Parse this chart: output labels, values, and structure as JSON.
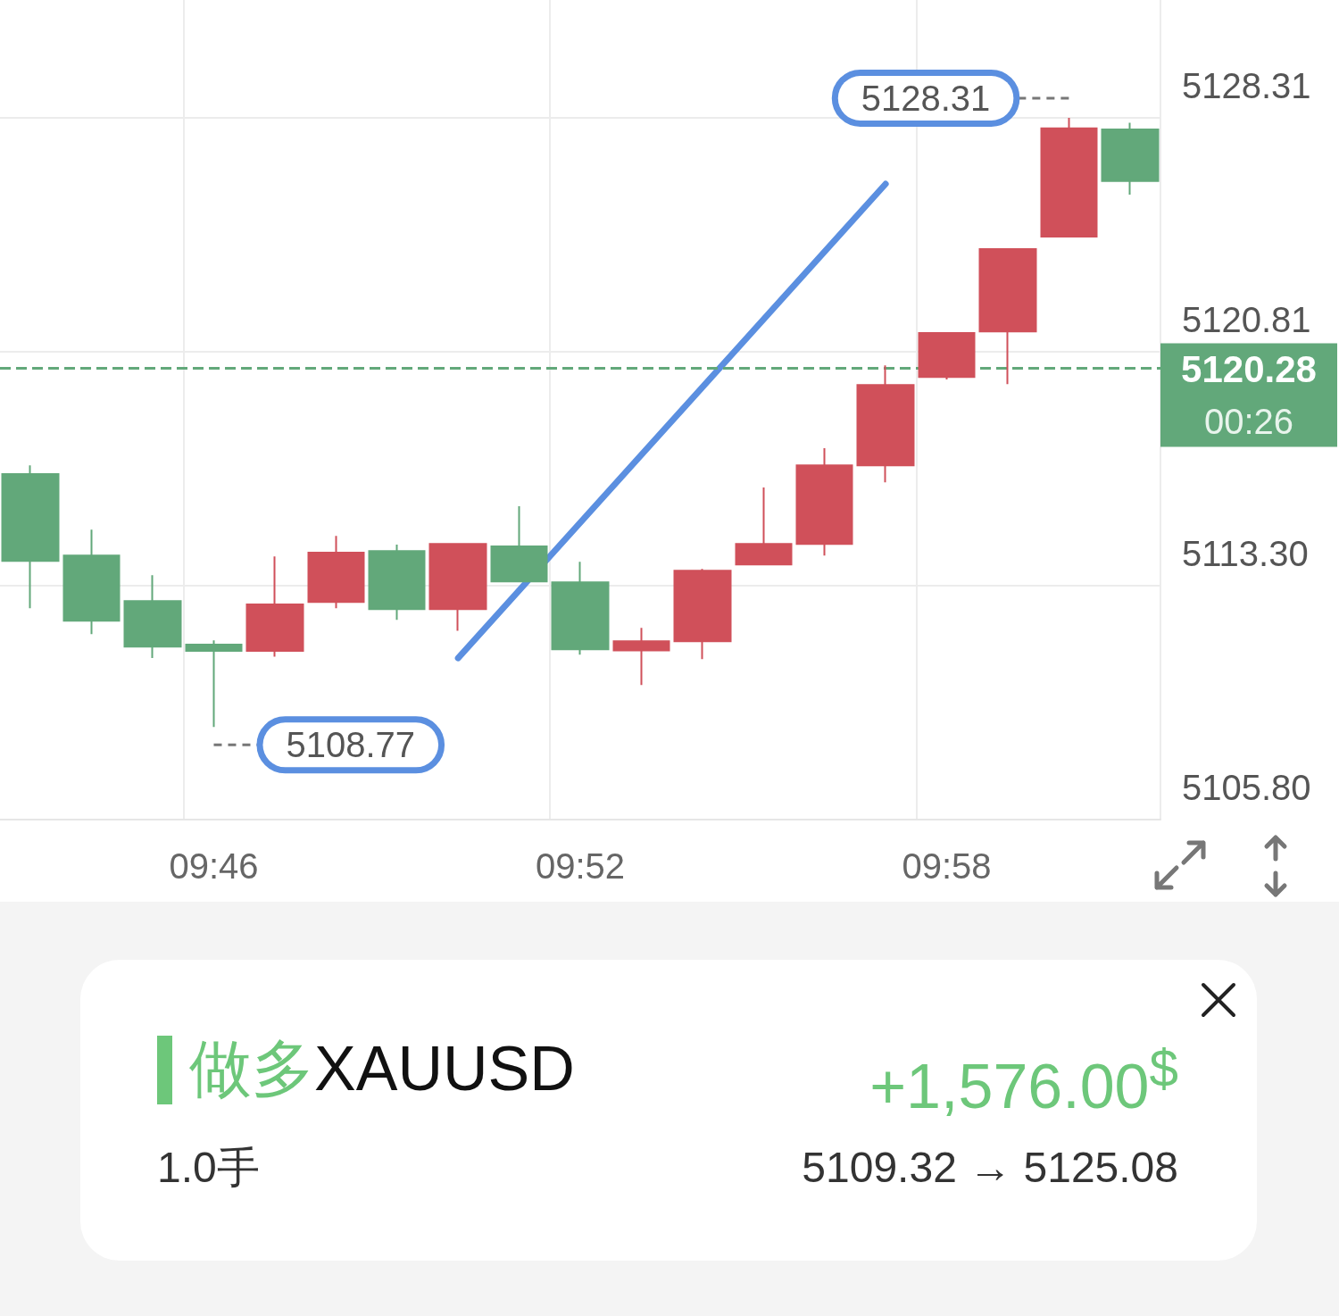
{
  "chart_data": [
    {
      "type": "candlestick",
      "categories": [
        null,
        null,
        null,
        "09:46",
        null,
        null,
        null,
        null,
        null,
        "09:52",
        null,
        null,
        null,
        null,
        null,
        "09:58",
        null,
        null,
        null
      ],
      "ohlc": [
        [
          5116.88,
          5117.16,
          5112.58,
          5114.1
        ],
        [
          5114.27,
          5115.1,
          5111.75,
          5112.18
        ],
        [
          5112.81,
          5113.64,
          5110.98,
          5111.35
        ],
        [
          5111.41,
          5111.55,
          5108.77,
          5111.21
        ],
        [
          5111.21,
          5114.24,
          5111.03,
          5112.7
        ],
        [
          5112.78,
          5114.9,
          5112.58,
          5114.36
        ],
        [
          5114.41,
          5114.62,
          5112.21,
          5112.55
        ],
        [
          5112.55,
          5114.64,
          5111.86,
          5114.64
        ],
        [
          5114.56,
          5115.85,
          5113.44,
          5113.44
        ],
        [
          5113.41,
          5114.07,
          5111.09,
          5111.26
        ],
        [
          5111.23,
          5111.95,
          5110.12,
          5111.52
        ],
        [
          5111.52,
          5113.84,
          5110.95,
          5113.78
        ],
        [
          5113.98,
          5116.45,
          5113.98,
          5114.64
        ],
        [
          5114.64,
          5117.71,
          5114.27,
          5117.16
        ],
        [
          5117.16,
          5120.37,
          5116.62,
          5119.74
        ],
        [
          5120.0,
          5121.41,
          5119.92,
          5121.41
        ],
        [
          5121.46,
          5124.13,
          5119.77,
          5124.1
        ],
        [
          5124.5,
          5128.31,
          5124.5,
          5127.97
        ],
        [
          5127.94,
          5128.15,
          5125.85,
          5126.28
        ]
      ],
      "colors": [
        "#62a87a",
        "#62a87a",
        "#62a87a",
        "#62a87a",
        "#d0505a",
        "#d0505a",
        "#62a87a",
        "#d0505a",
        "#62a87a",
        "#62a87a",
        "#d0505a",
        "#d0505a",
        "#d0505a",
        "#d0505a",
        "#d0505a",
        "#d0505a",
        "#d0505a",
        "#d0505a",
        "#62a87a"
      ],
      "series": [
        {
          "type": "line",
          "color": "#5b8fe0",
          "values": [
            null,
            null,
            null,
            null,
            null,
            null,
            null,
            5110.98,
            null,
            null,
            null,
            null,
            null,
            null,
            5126.19,
            null,
            null,
            null,
            null
          ]
        }
      ],
      "marker": "none",
      "ylim": [
        5105.8,
        5132.09
      ],
      "yticks": [
        {
          "value": 5105.8,
          "label": "5105.80"
        },
        {
          "value": 5113.3,
          "label": "5113.30"
        },
        5120.81,
        5128.31
      ],
      "grid": true,
      "ref_lines": [
        {
          "axis": "y",
          "value": 5120.28,
          "label": "5120.28",
          "color": "#62a87a",
          "line_style": "dashed"
        }
      ],
      "annotations": [
        {
          "text": "5108.77",
          "x": "09:46",
          "y": 5108.77
        },
        "5128.31",
        "00:26"
      ]
    },
    {
      "type": "other",
      "annotations": [
        "做多",
        "XAUUSD",
        "1.0手",
        "+1,576.00$^{$}$",
        "5109.32 → 5125.08"
      ]
    }
  ]
}
